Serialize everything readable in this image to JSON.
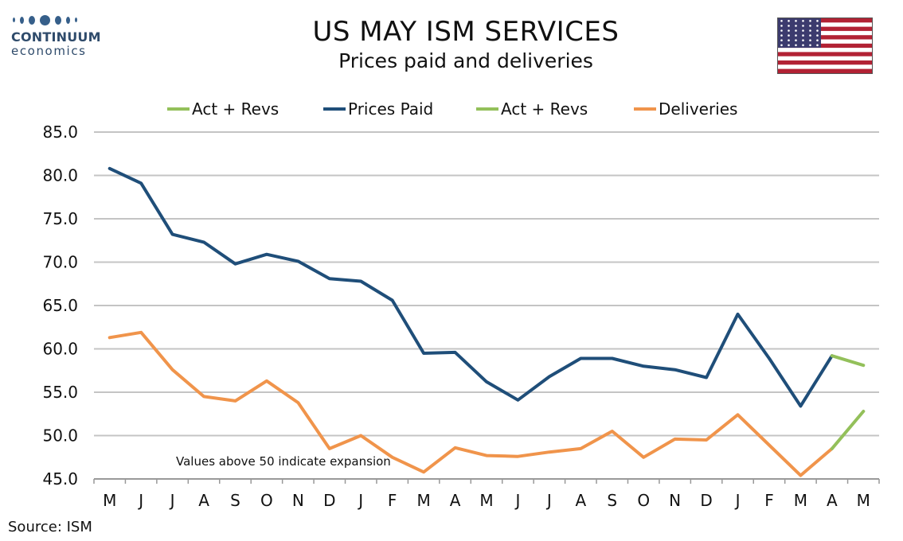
{
  "header": {
    "title": "US MAY ISM SERVICES",
    "subtitle": "Prices paid and deliveries"
  },
  "logo": {
    "word1": "CONTINUUM",
    "word2": "economics"
  },
  "flag": {
    "icon": "us-flag-icon"
  },
  "source": "Source: ISM",
  "colors": {
    "prices_paid": "#1f4e79",
    "deliveries": "#f0944b",
    "revisions": "#93c05a",
    "grid": "#c4c4c4"
  },
  "chart_data": {
    "type": "line",
    "x": [
      "M",
      "J",
      "J",
      "A",
      "S",
      "O",
      "N",
      "D",
      "J",
      "F",
      "M",
      "A",
      "M",
      "J",
      "J",
      "A",
      "S",
      "O",
      "N",
      "D",
      "J",
      "F",
      "M",
      "A",
      "M"
    ],
    "ylim": [
      45.0,
      85.0
    ],
    "yticks": [
      "85.0",
      "80.0",
      "75.0",
      "70.0",
      "65.0",
      "60.0",
      "55.0",
      "50.0",
      "45.0"
    ],
    "annotation": "Values above 50 indicate expansion",
    "legend": [
      "Act + Revs",
      "Prices Paid",
      "Act + Revs",
      "Deliveries"
    ],
    "series": [
      {
        "name": "Prices Paid",
        "color": "#1f4e79",
        "values": [
          80.8,
          79.1,
          73.2,
          72.3,
          69.8,
          70.9,
          70.1,
          68.1,
          67.8,
          65.6,
          59.5,
          59.6,
          56.2,
          54.1,
          56.8,
          58.9,
          58.9,
          58.0,
          57.6,
          56.7,
          64.0,
          58.9,
          53.4,
          59.2,
          null
        ]
      },
      {
        "name": "Act + Revs",
        "color": "#93c05a",
        "values": [
          null,
          null,
          null,
          null,
          null,
          null,
          null,
          null,
          null,
          null,
          null,
          null,
          null,
          null,
          null,
          null,
          null,
          null,
          null,
          null,
          null,
          null,
          null,
          59.2,
          58.1
        ]
      },
      {
        "name": "Deliveries",
        "color": "#f0944b",
        "values": [
          61.3,
          61.9,
          57.6,
          54.5,
          54.0,
          56.3,
          53.8,
          48.5,
          50.0,
          47.5,
          45.8,
          48.6,
          47.7,
          47.6,
          48.1,
          48.5,
          50.5,
          47.5,
          49.6,
          49.5,
          52.4,
          48.9,
          45.4,
          48.5,
          null
        ]
      },
      {
        "name": "Act + Revs",
        "color": "#93c05a",
        "values": [
          null,
          null,
          null,
          null,
          null,
          null,
          null,
          null,
          null,
          null,
          null,
          null,
          null,
          null,
          null,
          null,
          null,
          null,
          null,
          null,
          null,
          null,
          null,
          48.5,
          52.8
        ]
      }
    ]
  }
}
